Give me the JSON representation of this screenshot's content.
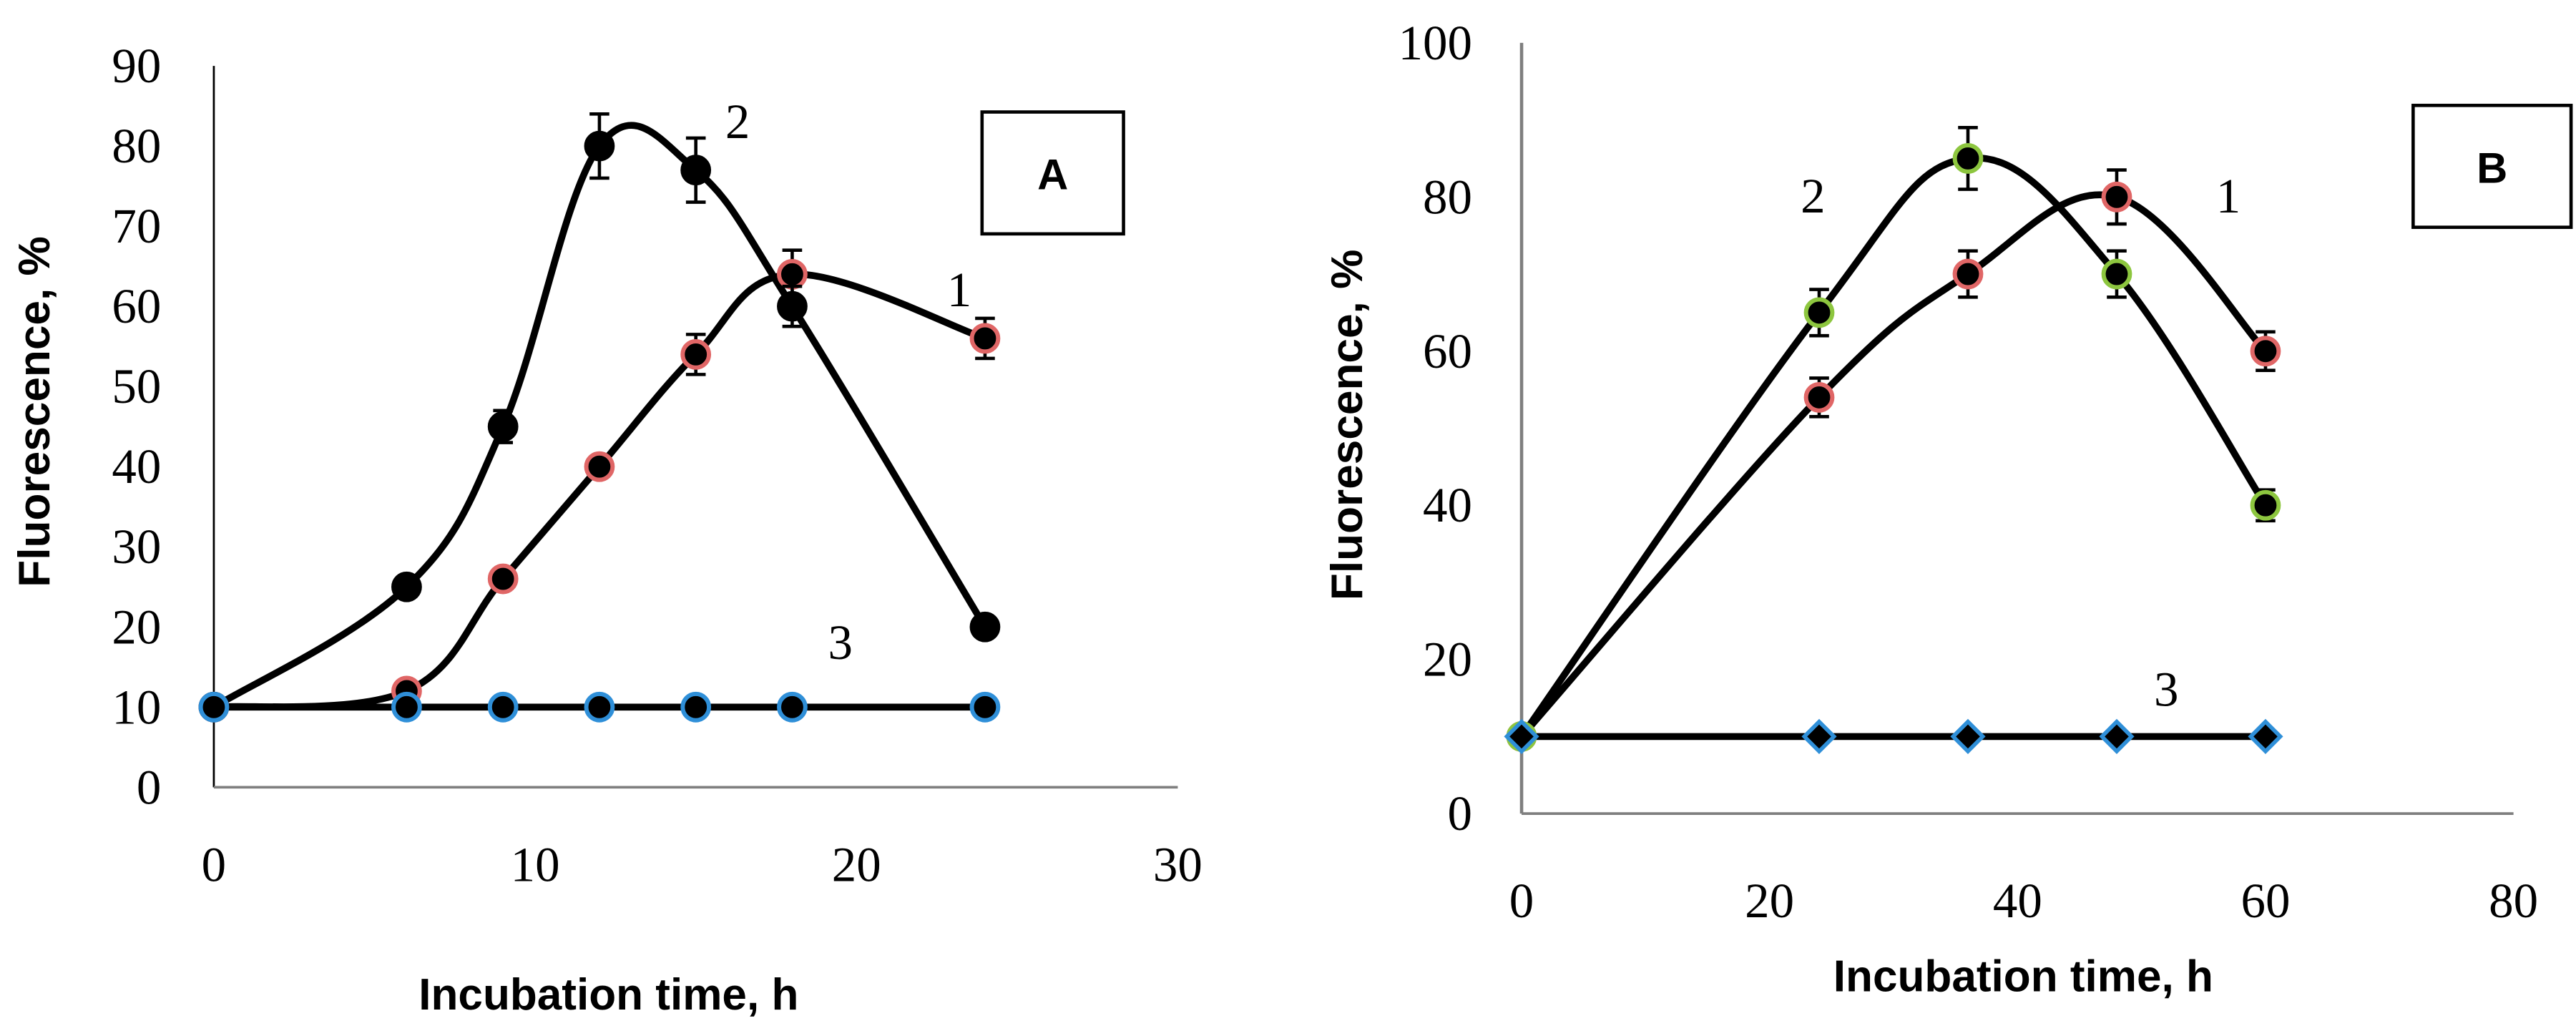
{
  "colors": {
    "curve": "#000000",
    "marker_fill": "#000000",
    "series1_edge": "#e06666",
    "series2_edge_B": "#8dc63f",
    "series3_edge": "#2f8fd8",
    "axis": "#7f7f7f"
  },
  "chart_data": [
    {
      "type": "line",
      "panel_label": "A",
      "xlabel": "Incubation time, h",
      "ylabel": "Fluorescence, %",
      "xlim": [
        0,
        30
      ],
      "ylim": [
        0,
        90
      ],
      "x_ticks": [
        0,
        10,
        20,
        30
      ],
      "y_ticks": [
        0,
        10,
        20,
        30,
        40,
        50,
        60,
        70,
        80,
        90
      ],
      "series": [
        {
          "name": "1",
          "marker": "circle",
          "edge": "series1_edge",
          "x": [
            0,
            6,
            9,
            12,
            15,
            18,
            24
          ],
          "y": [
            10,
            12,
            26,
            40,
            54,
            64,
            56
          ],
          "err": [
            0,
            0,
            0,
            0,
            2.5,
            3,
            2.5
          ]
        },
        {
          "name": "2",
          "marker": "circle",
          "edge": "curve",
          "x": [
            0,
            6,
            9,
            12,
            15,
            18,
            24
          ],
          "y": [
            10,
            25,
            45,
            80,
            77,
            60,
            20
          ],
          "err": [
            0,
            0,
            2,
            4,
            4,
            2.5,
            0
          ]
        },
        {
          "name": "3",
          "marker": "circle",
          "edge": "series3_edge",
          "x": [
            0,
            6,
            9,
            12,
            15,
            18,
            24
          ],
          "y": [
            10,
            10,
            10,
            10,
            10,
            10,
            10
          ],
          "err": [
            0,
            0,
            0,
            0,
            0,
            0,
            0
          ]
        }
      ],
      "annotations": [
        {
          "text": "1",
          "x": 23.2,
          "y": 60
        },
        {
          "text": "2",
          "x": 16.3,
          "y": 81
        },
        {
          "text": "3",
          "x": 19.5,
          "y": 16
        }
      ]
    },
    {
      "type": "line",
      "panel_label": "B",
      "xlabel": "Incubation time, h",
      "ylabel": "Fluorescence, %",
      "xlim": [
        0,
        80
      ],
      "ylim": [
        0,
        100
      ],
      "x_ticks": [
        0,
        20,
        40,
        60,
        80
      ],
      "y_ticks": [
        0,
        20,
        40,
        60,
        80,
        100
      ],
      "series": [
        {
          "name": "1",
          "marker": "circle",
          "edge": "series1_edge",
          "x": [
            0,
            24,
            36,
            48,
            60
          ],
          "y": [
            10,
            54,
            70,
            80,
            60
          ],
          "err": [
            0,
            2.5,
            3,
            3.5,
            2.5
          ]
        },
        {
          "name": "2",
          "marker": "circle",
          "edge": "series2_edge_B",
          "x": [
            0,
            24,
            36,
            48,
            60
          ],
          "y": [
            10,
            65,
            85,
            70,
            40
          ],
          "err": [
            0,
            3,
            4,
            3,
            2
          ]
        },
        {
          "name": "3",
          "marker": "diamond",
          "edge": "series3_edge",
          "x": [
            0,
            24,
            36,
            48,
            60
          ],
          "y": [
            10,
            10,
            10,
            10,
            10
          ],
          "err": [
            0,
            0,
            0,
            0,
            0
          ]
        }
      ],
      "annotations": [
        {
          "text": "1",
          "x": 57,
          "y": 78
        },
        {
          "text": "2",
          "x": 23.5,
          "y": 78
        },
        {
          "text": "3",
          "x": 52,
          "y": 14
        }
      ]
    }
  ]
}
